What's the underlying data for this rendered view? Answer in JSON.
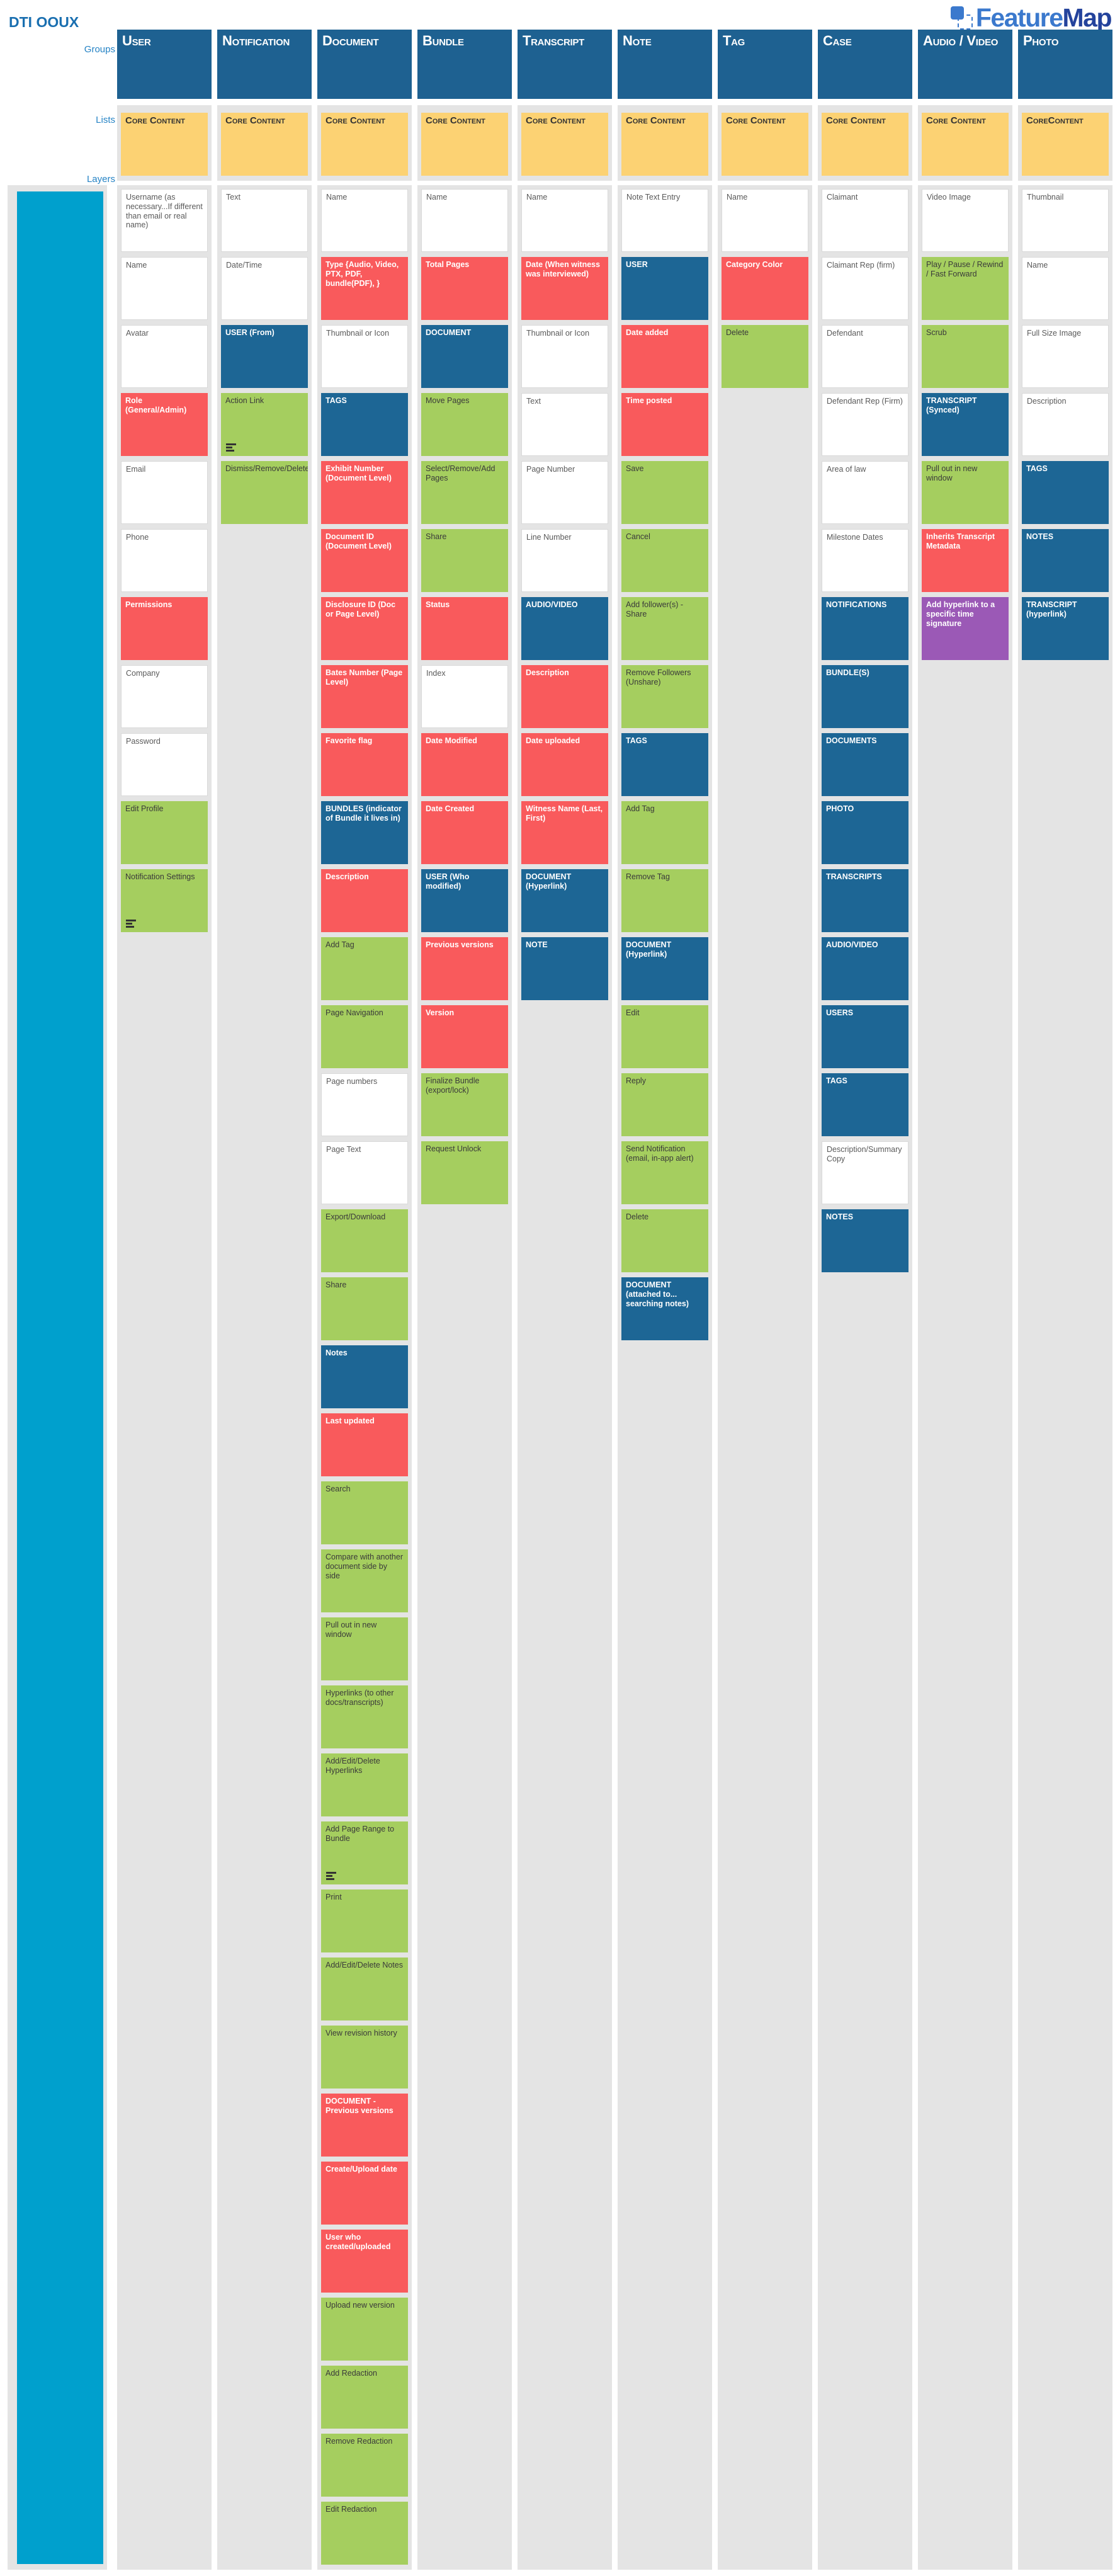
{
  "page": {
    "title": "DTI OOUX"
  },
  "logo": {
    "text_primary": "Feature",
    "text_secondary": "Map"
  },
  "row_labels": {
    "groups": "Groups",
    "lists": "Lists",
    "layers": "Layers"
  },
  "colors": {
    "group_header_blue": "#1E6191",
    "card_blue": "#1D6695",
    "card_red": "#F95A5C",
    "card_green": "#A5CE5F",
    "card_purple": "#9B59B6",
    "list_card_yellow": "#FCD273",
    "layer_bar_cyan": "#00A0CD",
    "panel_gray": "#E4E4E4",
    "label_blue": "#2583C5",
    "logo_blue": "#3B79CD",
    "logo_navy": "#24439C",
    "title_blue": "#1A6FB0"
  },
  "groups": [
    {
      "name": "User",
      "list_label": "Core Content",
      "cards": [
        {
          "label": "Username (as necessary...If different than email or real name)",
          "color": "white"
        },
        {
          "label": "Name",
          "color": "white"
        },
        {
          "label": "Avatar",
          "color": "white"
        },
        {
          "label": "Role (General/Admin)",
          "color": "red"
        },
        {
          "label": "Email",
          "color": "white"
        },
        {
          "label": "Phone",
          "color": "white"
        },
        {
          "label": "Permissions",
          "color": "red"
        },
        {
          "label": "Company",
          "color": "white"
        },
        {
          "label": "Password",
          "color": "white"
        },
        {
          "label": "Edit Profile",
          "color": "green"
        },
        {
          "label": "Notification Settings",
          "color": "green",
          "indicator": true
        }
      ]
    },
    {
      "name": "Notification",
      "list_label": "Core Content",
      "cards": [
        {
          "label": "Text",
          "color": "white"
        },
        {
          "label": "Date/Time",
          "color": "white"
        },
        {
          "label": "USER (From)",
          "color": "blue"
        },
        {
          "label": "Action Link",
          "color": "green",
          "indicator": true
        },
        {
          "label": "Dismiss/Remove/Delete",
          "color": "green"
        }
      ]
    },
    {
      "name": "Document",
      "list_label": "Core Content",
      "cards": [
        {
          "label": "Name",
          "color": "white"
        },
        {
          "label": "Type {Audio, Video, PTX, PDF, bundle(PDF), }",
          "color": "red"
        },
        {
          "label": "Thumbnail or Icon",
          "color": "white"
        },
        {
          "label": "TAGS",
          "color": "blue"
        },
        {
          "label": "Exhibit Number (Document Level)",
          "color": "red"
        },
        {
          "label": "Document ID (Document Level)",
          "color": "red"
        },
        {
          "label": "Disclosure ID (Doc or Page Level)",
          "color": "red"
        },
        {
          "label": "Bates Number (Page Level)",
          "color": "red"
        },
        {
          "label": "Favorite flag",
          "color": "red"
        },
        {
          "label": "BUNDLES (indicator of Bundle it lives in)",
          "color": "blue"
        },
        {
          "label": "Description",
          "color": "red"
        },
        {
          "label": "Add Tag",
          "color": "green"
        },
        {
          "label": "Page Navigation",
          "color": "green"
        },
        {
          "label": "Page numbers",
          "color": "white"
        },
        {
          "label": "Page Text",
          "color": "white"
        },
        {
          "label": "Export/Download",
          "color": "green"
        },
        {
          "label": "Share",
          "color": "green"
        },
        {
          "label": "Notes",
          "color": "blue"
        },
        {
          "label": "Last updated",
          "color": "red"
        },
        {
          "label": "Search",
          "color": "green"
        },
        {
          "label": "Compare with another document side by side",
          "color": "green"
        },
        {
          "label": "Pull out in new window",
          "color": "green"
        },
        {
          "label": "Hyperlinks (to other docs/transcripts)",
          "color": "green"
        },
        {
          "label": "Add/Edit/Delete Hyperlinks",
          "color": "green"
        },
        {
          "label": "Add Page Range to Bundle",
          "color": "green",
          "indicator": true
        },
        {
          "label": "Print",
          "color": "green"
        },
        {
          "label": "Add/Edit/Delete Notes",
          "color": "green"
        },
        {
          "label": "View revision history",
          "color": "green"
        },
        {
          "label": "DOCUMENT - Previous versions",
          "color": "red"
        },
        {
          "label": "Create/Upload date",
          "color": "red"
        },
        {
          "label": "User who created/uploaded",
          "color": "red"
        },
        {
          "label": "Upload new version",
          "color": "green"
        },
        {
          "label": "Add Redaction",
          "color": "green"
        },
        {
          "label": "Remove Redaction",
          "color": "green"
        },
        {
          "label": "Edit Redaction",
          "color": "green"
        }
      ]
    },
    {
      "name": "Bundle",
      "list_label": "Core Content",
      "cards": [
        {
          "label": "Name",
          "color": "white"
        },
        {
          "label": "Total Pages",
          "color": "red"
        },
        {
          "label": "DOCUMENT",
          "color": "blue"
        },
        {
          "label": "Move Pages",
          "color": "green"
        },
        {
          "label": "Select/Remove/Add Pages",
          "color": "green"
        },
        {
          "label": "Share",
          "color": "green"
        },
        {
          "label": "Status",
          "color": "red"
        },
        {
          "label": "Index",
          "color": "white"
        },
        {
          "label": "Date Modified",
          "color": "red"
        },
        {
          "label": "Date Created",
          "color": "red"
        },
        {
          "label": "USER (Who modified)",
          "color": "blue"
        },
        {
          "label": "Previous versions",
          "color": "red"
        },
        {
          "label": "Version",
          "color": "red"
        },
        {
          "label": "Finalize Bundle (export/lock)",
          "color": "green"
        },
        {
          "label": "Request Unlock",
          "color": "green"
        }
      ]
    },
    {
      "name": "Transcript",
      "list_label": "Core Content",
      "cards": [
        {
          "label": "Name",
          "color": "white"
        },
        {
          "label": "Date (When witness was interviewed)",
          "color": "red"
        },
        {
          "label": "Thumbnail or Icon",
          "color": "white"
        },
        {
          "label": "Text",
          "color": "white"
        },
        {
          "label": "Page Number",
          "color": "white"
        },
        {
          "label": "Line Number",
          "color": "white"
        },
        {
          "label": "AUDIO/VIDEO",
          "color": "blue"
        },
        {
          "label": "Description",
          "color": "red"
        },
        {
          "label": "Date uploaded",
          "color": "red"
        },
        {
          "label": "Witness Name (Last, First)",
          "color": "red"
        },
        {
          "label": "DOCUMENT (Hyperlink)",
          "color": "blue"
        },
        {
          "label": "NOTE",
          "color": "blue"
        }
      ]
    },
    {
      "name": "Note",
      "list_label": "Core Content",
      "cards": [
        {
          "label": "Note Text Entry",
          "color": "white"
        },
        {
          "label": "USER",
          "color": "blue"
        },
        {
          "label": "Date added",
          "color": "red"
        },
        {
          "label": "Time posted",
          "color": "red"
        },
        {
          "label": "Save",
          "color": "green"
        },
        {
          "label": "Cancel",
          "color": "green"
        },
        {
          "label": "Add follower(s) - Share",
          "color": "green"
        },
        {
          "label": "Remove Followers (Unshare)",
          "color": "green"
        },
        {
          "label": "TAGS",
          "color": "blue"
        },
        {
          "label": "Add Tag",
          "color": "green"
        },
        {
          "label": "Remove Tag",
          "color": "green"
        },
        {
          "label": "DOCUMENT (Hyperlink)",
          "color": "blue"
        },
        {
          "label": "Edit",
          "color": "green"
        },
        {
          "label": "Reply",
          "color": "green"
        },
        {
          "label": "Send Notification (email, in-app alert)",
          "color": "green"
        },
        {
          "label": "Delete",
          "color": "green"
        },
        {
          "label": "DOCUMENT (attached to... searching notes)",
          "color": "blue"
        }
      ]
    },
    {
      "name": "Tag",
      "list_label": "Core Content",
      "cards": [
        {
          "label": "Name",
          "color": "white"
        },
        {
          "label": "Category Color",
          "color": "red"
        },
        {
          "label": "Delete",
          "color": "green"
        }
      ]
    },
    {
      "name": "Case",
      "list_label": "Core Content",
      "cards": [
        {
          "label": "Claimant",
          "color": "white"
        },
        {
          "label": "Claimant Rep (firm)",
          "color": "white"
        },
        {
          "label": "Defendant",
          "color": "white"
        },
        {
          "label": "Defendant Rep (Firm)",
          "color": "white"
        },
        {
          "label": "Area of law",
          "color": "white"
        },
        {
          "label": "Milestone Dates",
          "color": "white"
        },
        {
          "label": "NOTIFICATIONS",
          "color": "blue"
        },
        {
          "label": "BUNDLE(S)",
          "color": "blue"
        },
        {
          "label": "DOCUMENTS",
          "color": "blue"
        },
        {
          "label": "PHOTO",
          "color": "blue"
        },
        {
          "label": "TRANSCRIPTS",
          "color": "blue"
        },
        {
          "label": "AUDIO/VIDEO",
          "color": "blue"
        },
        {
          "label": "USERS",
          "color": "blue"
        },
        {
          "label": "TAGS",
          "color": "blue"
        },
        {
          "label": "Description/Summary Copy",
          "color": "white"
        },
        {
          "label": "NOTES",
          "color": "blue"
        }
      ]
    },
    {
      "name": "Audio / Video",
      "list_label": "Core Content",
      "cards": [
        {
          "label": "Video Image",
          "color": "white"
        },
        {
          "label": "Play / Pause / Rewind / Fast Forward",
          "color": "green"
        },
        {
          "label": "Scrub",
          "color": "green"
        },
        {
          "label": "TRANSCRIPT (Synced)",
          "color": "blue"
        },
        {
          "label": "Pull out in new window",
          "color": "green"
        },
        {
          "label": "Inherits Transcript Metadata",
          "color": "red"
        },
        {
          "label": "Add hyperlink to a specific time signature",
          "color": "purple"
        }
      ]
    },
    {
      "name": "Photo",
      "list_label": "CoreContent",
      "cards": [
        {
          "label": "Thumbnail",
          "color": "white"
        },
        {
          "label": "Name",
          "color": "white"
        },
        {
          "label": "Full Size Image",
          "color": "white"
        },
        {
          "label": "Description",
          "color": "white"
        },
        {
          "label": "TAGS",
          "color": "blue"
        },
        {
          "label": "NOTES",
          "color": "blue"
        },
        {
          "label": "TRANSCRIPT (hyperlink)",
          "color": "blue"
        }
      ]
    }
  ]
}
